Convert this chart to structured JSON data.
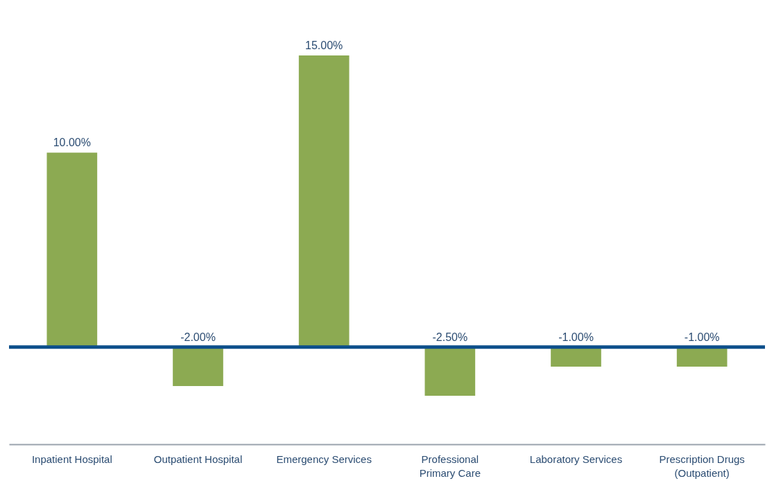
{
  "chart_data": {
    "type": "bar",
    "categories": [
      "Inpatient Hospital",
      "Outpatient Hospital",
      "Emergency Services",
      "Professional Primary Care",
      "Laboratory Services",
      "Prescription Drugs (Outpatient)"
    ],
    "values": [
      10,
      -2,
      15,
      -2.5,
      -1,
      -1
    ],
    "value_labels": [
      "10.00%",
      "-2.00%",
      "15.00%",
      "-2.50%",
      "-1.00%",
      "-1.00%"
    ],
    "color": "#8caa52",
    "ref_lines": [
      {
        "axis": "y",
        "value": 0,
        "color": "#0d4f8b"
      }
    ]
  }
}
